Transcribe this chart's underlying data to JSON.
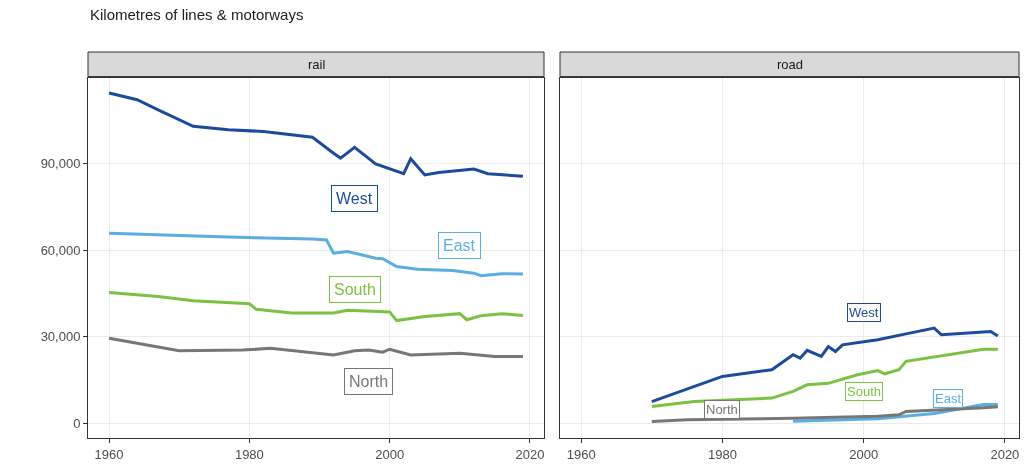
{
  "chart_data": [
    {
      "type": "line",
      "title": "Kilometres of lines & motorways",
      "subtitle": "rail",
      "xlim": [
        1957,
        2022
      ],
      "xticks": [
        1960,
        1980,
        2000,
        2020
      ],
      "ylim": [
        -5000,
        119500
      ],
      "yticks": [
        {
          "value": 0,
          "label": "0"
        },
        {
          "value": 30000,
          "label": "30,000"
        },
        {
          "value": 60000,
          "label": "60,000"
        },
        {
          "value": 90000,
          "label": "90,000"
        }
      ],
      "grid": true,
      "series": [
        {
          "name": "West",
          "color": "#1c4b9b",
          "x": [
            1960,
            1964,
            1967,
            1972,
            1977,
            1982,
            1989,
            1992,
            1993,
            1995,
            1998,
            2002,
            2003,
            2005,
            2007,
            2012,
            2014,
            2019
          ],
          "values": [
            114300,
            112000,
            108500,
            102800,
            101600,
            101000,
            99000,
            93500,
            91800,
            95500,
            89800,
            86400,
            91600,
            86000,
            86800,
            88000,
            86400,
            85500
          ]
        },
        {
          "name": "East",
          "color": "#5aaee0",
          "x": [
            1960,
            1977,
            1989,
            1991,
            1992,
            1994,
            1998,
            1999,
            2001,
            2004,
            2009,
            2012,
            2013,
            2016,
            2019
          ],
          "values": [
            65800,
            64500,
            63800,
            63500,
            58900,
            59500,
            57200,
            57000,
            54300,
            53400,
            52900,
            52000,
            51100,
            51800,
            51700
          ]
        },
        {
          "name": "South",
          "color": "#7cc242",
          "x": [
            1960,
            1967,
            1972,
            1980,
            1981,
            1986,
            1992,
            1994,
            2000,
            2001,
            2005,
            2010,
            2011,
            2013,
            2016,
            2019
          ],
          "values": [
            45300,
            43900,
            42500,
            41400,
            39500,
            38200,
            38200,
            39200,
            38600,
            35600,
            37000,
            38000,
            35900,
            37300,
            38000,
            37400
          ]
        },
        {
          "name": "North",
          "color": "#777777",
          "x": [
            1960,
            1970,
            1979,
            1983,
            1992,
            1995,
            1997,
            1999,
            2000,
            2003,
            2010,
            2015,
            2019
          ],
          "values": [
            29500,
            25200,
            25400,
            26000,
            23700,
            25200,
            25400,
            24700,
            25700,
            23700,
            24300,
            23200,
            23200
          ]
        }
      ]
    },
    {
      "type": "line",
      "subtitle": "road",
      "xlim": [
        1957,
        2022
      ],
      "xticks": [
        1960,
        1980,
        2000,
        2020
      ],
      "ylim": [
        -5000,
        119500
      ],
      "yticks": [
        0,
        30000,
        60000,
        90000
      ],
      "grid": true,
      "tick_labels": "x",
      "series": [
        {
          "name": "West",
          "color": "#1c4b9b",
          "x": [
            1970,
            1980,
            1987,
            1990,
            1991,
            1992,
            1994,
            1995,
            1996,
            1997,
            2002,
            2006,
            2010,
            2011,
            2018,
            2019
          ],
          "values": [
            7600,
            16300,
            18600,
            23800,
            22600,
            25300,
            23200,
            26600,
            24900,
            27200,
            29000,
            31000,
            33000,
            30700,
            31800,
            30300
          ]
        },
        {
          "name": "East",
          "color": "#5aaee0",
          "x": [
            1990,
            2002,
            2010,
            2017,
            2019
          ],
          "values": [
            800,
            1700,
            3500,
            6600,
            6600
          ]
        },
        {
          "name": "South",
          "color": "#7cc242",
          "x": [
            1970,
            1976,
            1987,
            1990,
            1992,
            1995,
            1999,
            2002,
            2003,
            2005,
            2006,
            2017,
            2019
          ],
          "values": [
            5900,
            7600,
            8800,
            11100,
            13400,
            13900,
            16800,
            18300,
            17200,
            18600,
            21500,
            25700,
            25700
          ]
        },
        {
          "name": "North",
          "color": "#777777",
          "x": [
            1970,
            1975,
            1980,
            1990,
            2002,
            2005,
            2006,
            2017,
            2019
          ],
          "values": [
            700,
            1300,
            1500,
            1800,
            2500,
            3000,
            4200,
            5500,
            5800
          ]
        }
      ]
    }
  ]
}
